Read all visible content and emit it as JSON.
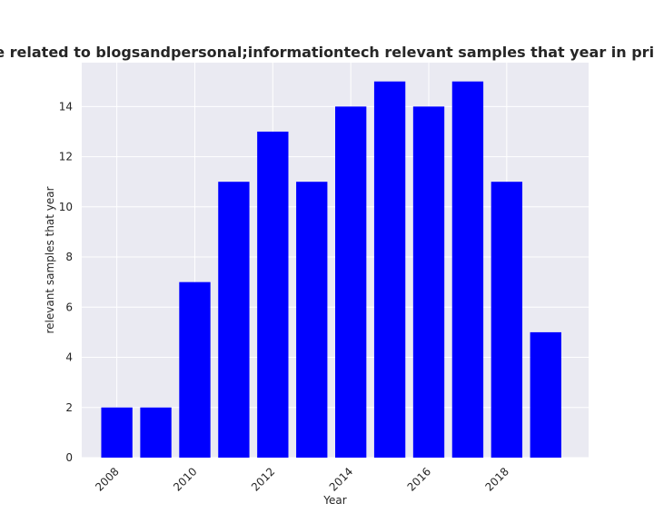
{
  "chart_data": {
    "type": "bar",
    "title": "ategories are related to blogsandpersonal;informationtech relevant samples that year in privacy policies",
    "xlabel": "Year",
    "ylabel": "relevant samples that year",
    "x": [
      2008,
      2009,
      2010,
      2011,
      2012,
      2013,
      2014,
      2015,
      2016,
      2017,
      2018,
      2019
    ],
    "values": [
      2,
      2,
      7,
      11,
      13,
      11,
      14,
      15,
      14,
      15,
      11,
      5
    ],
    "xticks": [
      "2008",
      "2010",
      "2012",
      "2014",
      "2016",
      "2018"
    ],
    "yticks": [
      "0",
      "2",
      "4",
      "6",
      "8",
      "10",
      "12",
      "14"
    ],
    "ylim": [
      0,
      15.75
    ],
    "xlim": [
      2007.1,
      2020.1
    ],
    "grid": true,
    "bar_color": "#0000ff",
    "background_color": "#eaeaf2",
    "grid_color": "#ffffff"
  }
}
